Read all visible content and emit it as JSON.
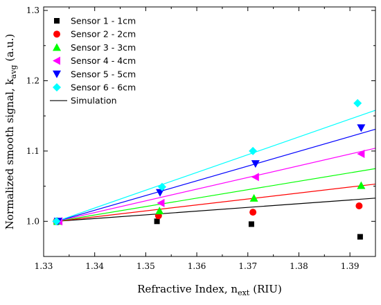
{
  "chart_data": {
    "type": "scatter",
    "title": "",
    "xlabel": {
      "main": "Refractive Index, n",
      "sub": "ext",
      "unit": "(RIU)"
    },
    "ylabel": {
      "main": "Normalized smooth signal, k",
      "sub": "avg",
      "unit": "(a.u.)"
    },
    "xlim": [
      1.33,
      1.395
    ],
    "ylim": [
      0.95,
      1.305
    ],
    "xticks": [
      "1.33",
      "1.34",
      "1.35",
      "1.36",
      "1.37",
      "1.38",
      "1.39"
    ],
    "yticks": [
      "1.0",
      "1.1",
      "1.2",
      "1.3"
    ],
    "grid": false,
    "legend_position": "top-left",
    "series": [
      {
        "name": "Sensor 1 - 1cm",
        "color": "#000000",
        "marker": "square",
        "x": [
          1.3325,
          1.3522,
          1.3707,
          1.392
        ],
        "y": [
          0.999,
          1.0,
          0.996,
          0.978
        ],
        "fit": {
          "x": [
            1.3325,
            1.395
          ],
          "y": [
            1.0,
            1.033
          ]
        }
      },
      {
        "name": "Sensor 2 - 2cm",
        "color": "#ff0000",
        "marker": "circle",
        "x": [
          1.3325,
          1.3525,
          1.371,
          1.3918
        ],
        "y": [
          1.0,
          1.008,
          1.013,
          1.022
        ],
        "fit": {
          "x": [
            1.3325,
            1.395
          ],
          "y": [
            1.0,
            1.053
          ]
        }
      },
      {
        "name": "Sensor 3 - 3cm",
        "color": "#00ff00",
        "marker": "triangle-up",
        "x": [
          1.3327,
          1.3527,
          1.3712,
          1.3922
        ],
        "y": [
          1.0,
          1.015,
          1.033,
          1.051
        ],
        "fit": {
          "x": [
            1.3325,
            1.395
          ],
          "y": [
            1.0,
            1.075
          ]
        }
      },
      {
        "name": "Sensor 4 - 4cm",
        "color": "#ff00ff",
        "marker": "triangle-left",
        "x": [
          1.333,
          1.353,
          1.3715,
          1.3922
        ],
        "y": [
          1.0,
          1.026,
          1.063,
          1.096
        ],
        "fit": {
          "x": [
            1.3325,
            1.395
          ],
          "y": [
            1.0,
            1.104
          ]
        }
      },
      {
        "name": "Sensor 5 - 5cm",
        "color": "#0000ff",
        "marker": "triangle-down",
        "x": [
          1.3328,
          1.3528,
          1.3715,
          1.3922
        ],
        "y": [
          1.0,
          1.041,
          1.082,
          1.133
        ],
        "fit": {
          "x": [
            1.3325,
            1.395
          ],
          "y": [
            1.0,
            1.131
          ]
        }
      },
      {
        "name": "Sensor 6 - 6cm",
        "color": "#00ffff",
        "marker": "diamond",
        "x": [
          1.3325,
          1.3532,
          1.371,
          1.3915
        ],
        "y": [
          1.0,
          1.049,
          1.1,
          1.168
        ],
        "fit": {
          "x": [
            1.3325,
            1.395
          ],
          "y": [
            1.0,
            1.158
          ]
        }
      }
    ],
    "simulation_legend": {
      "name": "Simulation",
      "color": "#000000"
    }
  }
}
